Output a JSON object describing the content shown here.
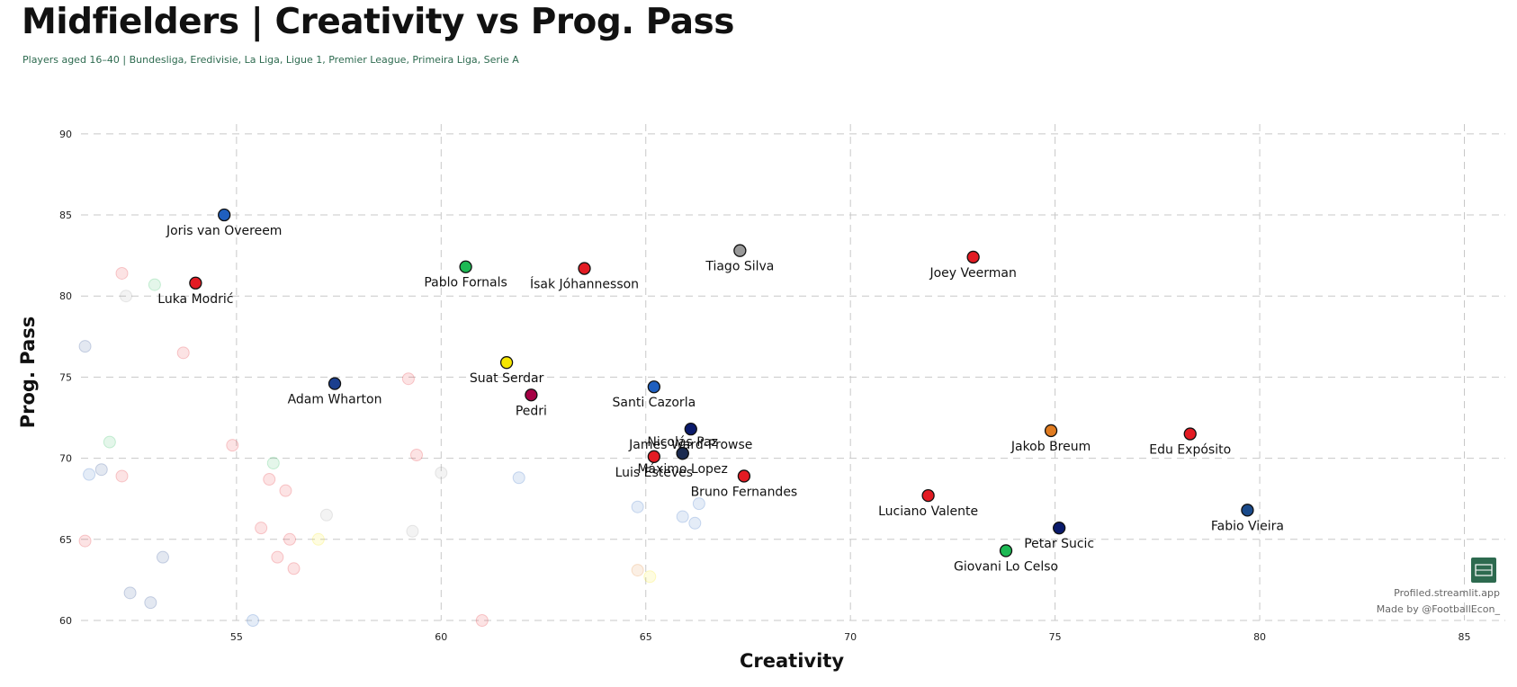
{
  "header": {
    "title": "Midfielders | Creativity vs Prog. Pass",
    "subtitle": "Players aged 16–40 | Bundesliga, Eredivisie, La Liga, Ligue 1, Premier League, Primeira Liga, Serie A"
  },
  "credits": {
    "site": "Profiled.streamlit.app",
    "author": "Made by @FootballEcon_",
    "logo_icon": "pitch-logo-icon",
    "logo_color": "#2d6a4f"
  },
  "chart_data": {
    "type": "scatter",
    "title": "Midfielders | Creativity vs Prog. Pass",
    "xlabel": "Creativity",
    "ylabel": "Prog. Pass",
    "xlim": [
      51.2,
      86
    ],
    "ylim": [
      60,
      90.6
    ],
    "xticks": [
      55,
      60,
      65,
      70,
      75,
      80,
      85
    ],
    "yticks": [
      60,
      65,
      70,
      75,
      80,
      85,
      90
    ],
    "grid": true,
    "highlighted": [
      {
        "name": "Joris van Overeem",
        "x": 54.7,
        "y": 85.0,
        "color": "#1f5fbf",
        "label_pos": "below"
      },
      {
        "name": "Luka Modrić",
        "x": 54.0,
        "y": 80.8,
        "color": "#e31b23",
        "label_pos": "below"
      },
      {
        "name": "Pablo Fornals",
        "x": 60.6,
        "y": 81.8,
        "color": "#1db954",
        "label_pos": "below"
      },
      {
        "name": "Ísak Jóhannesson",
        "x": 63.5,
        "y": 81.7,
        "color": "#e31b23",
        "label_pos": "below"
      },
      {
        "name": "Tiago Silva",
        "x": 67.3,
        "y": 82.8,
        "color": "#999999",
        "label_pos": "below"
      },
      {
        "name": "Joey Veerman",
        "x": 73.0,
        "y": 82.4,
        "color": "#e31b23",
        "label_pos": "below"
      },
      {
        "name": "Suat Serdar",
        "x": 61.6,
        "y": 75.9,
        "color": "#f5e600",
        "label_pos": "below"
      },
      {
        "name": "Adam Wharton",
        "x": 57.4,
        "y": 74.6,
        "color": "#1b3f8f",
        "label_pos": "below"
      },
      {
        "name": "Pedri",
        "x": 62.2,
        "y": 73.9,
        "color": "#a50044",
        "label_pos": "below"
      },
      {
        "name": "Santi Cazorla",
        "x": 65.2,
        "y": 74.4,
        "color": "#1f5fbf",
        "label_pos": "below"
      },
      {
        "name": "James Ward-Prowse",
        "x": 66.1,
        "y": 71.8,
        "color": "#0a1a6b",
        "label_pos": "below"
      },
      {
        "name": "Nicolás Paz",
        "x": 65.9,
        "y": 70.3,
        "color": "#1a2a4f",
        "label_pos": "above"
      },
      {
        "name": "Máximo Lopez",
        "x": 65.9,
        "y": 70.3,
        "color": "#1a2a4f",
        "label_pos": "below"
      },
      {
        "name": "Luis Esteves",
        "x": 65.2,
        "y": 70.1,
        "color": "#e31b23",
        "label_pos": "below"
      },
      {
        "name": "Bruno Fernandes",
        "x": 67.4,
        "y": 68.9,
        "color": "#e31b23",
        "label_pos": "below"
      },
      {
        "name": "Jakob Breum",
        "x": 74.9,
        "y": 71.7,
        "color": "#e07b20",
        "label_pos": "below"
      },
      {
        "name": "Edu Expósito",
        "x": 78.3,
        "y": 71.5,
        "color": "#e31b23",
        "label_pos": "below"
      },
      {
        "name": "Luciano Valente",
        "x": 71.9,
        "y": 67.7,
        "color": "#e31b23",
        "label_pos": "below"
      },
      {
        "name": "Fabio Vieira",
        "x": 79.7,
        "y": 66.8,
        "color": "#1a4a8a",
        "label_pos": "below"
      },
      {
        "name": "Petar Sucic",
        "x": 75.1,
        "y": 65.7,
        "color": "#0a1a6b",
        "label_pos": "below"
      },
      {
        "name": "Giovani Lo Celso",
        "x": 73.8,
        "y": 64.3,
        "color": "#1db954",
        "label_pos": "below"
      }
    ],
    "background": [
      {
        "x": 52.2,
        "y": 81.4,
        "color": "#e31b23"
      },
      {
        "x": 52.3,
        "y": 80.0,
        "color": "#999999"
      },
      {
        "x": 53.0,
        "y": 80.7,
        "color": "#1db954"
      },
      {
        "x": 51.3,
        "y": 76.9,
        "color": "#1b3f8f"
      },
      {
        "x": 53.7,
        "y": 76.5,
        "color": "#e31b23"
      },
      {
        "x": 59.2,
        "y": 74.9,
        "color": "#e31b23"
      },
      {
        "x": 51.9,
        "y": 71.0,
        "color": "#1db954"
      },
      {
        "x": 54.9,
        "y": 70.8,
        "color": "#e31b23"
      },
      {
        "x": 51.7,
        "y": 69.3,
        "color": "#1b3f8f"
      },
      {
        "x": 51.4,
        "y": 69.0,
        "color": "#1f5fbf"
      },
      {
        "x": 52.2,
        "y": 68.9,
        "color": "#e31b23"
      },
      {
        "x": 55.9,
        "y": 69.7,
        "color": "#1db954"
      },
      {
        "x": 55.8,
        "y": 68.7,
        "color": "#e31b23"
      },
      {
        "x": 56.2,
        "y": 68.0,
        "color": "#e31b23"
      },
      {
        "x": 59.4,
        "y": 70.2,
        "color": "#e31b23"
      },
      {
        "x": 60.0,
        "y": 69.1,
        "color": "#999999"
      },
      {
        "x": 61.9,
        "y": 68.8,
        "color": "#1f5fbf"
      },
      {
        "x": 57.2,
        "y": 66.5,
        "color": "#999999"
      },
      {
        "x": 55.6,
        "y": 65.7,
        "color": "#e31b23"
      },
      {
        "x": 59.3,
        "y": 65.5,
        "color": "#999999"
      },
      {
        "x": 56.3,
        "y": 65.0,
        "color": "#e31b23"
      },
      {
        "x": 57.0,
        "y": 65.0,
        "color": "#f5e600"
      },
      {
        "x": 51.3,
        "y": 64.9,
        "color": "#e31b23"
      },
      {
        "x": 56.0,
        "y": 63.9,
        "color": "#e31b23"
      },
      {
        "x": 53.2,
        "y": 63.9,
        "color": "#1b3f8f"
      },
      {
        "x": 56.4,
        "y": 63.2,
        "color": "#e31b23"
      },
      {
        "x": 52.4,
        "y": 61.7,
        "color": "#1b3f8f"
      },
      {
        "x": 52.9,
        "y": 61.1,
        "color": "#1b3f8f"
      },
      {
        "x": 55.4,
        "y": 60.0,
        "color": "#1f5fbf"
      },
      {
        "x": 61.0,
        "y": 60.0,
        "color": "#e31b23"
      },
      {
        "x": 64.8,
        "y": 67.0,
        "color": "#1f5fbf"
      },
      {
        "x": 65.9,
        "y": 66.4,
        "color": "#1f5fbf"
      },
      {
        "x": 66.3,
        "y": 67.2,
        "color": "#1f5fbf"
      },
      {
        "x": 66.2,
        "y": 66.0,
        "color": "#1f5fbf"
      },
      {
        "x": 64.8,
        "y": 63.1,
        "color": "#e07b20"
      },
      {
        "x": 65.1,
        "y": 62.7,
        "color": "#f5e600"
      }
    ]
  }
}
